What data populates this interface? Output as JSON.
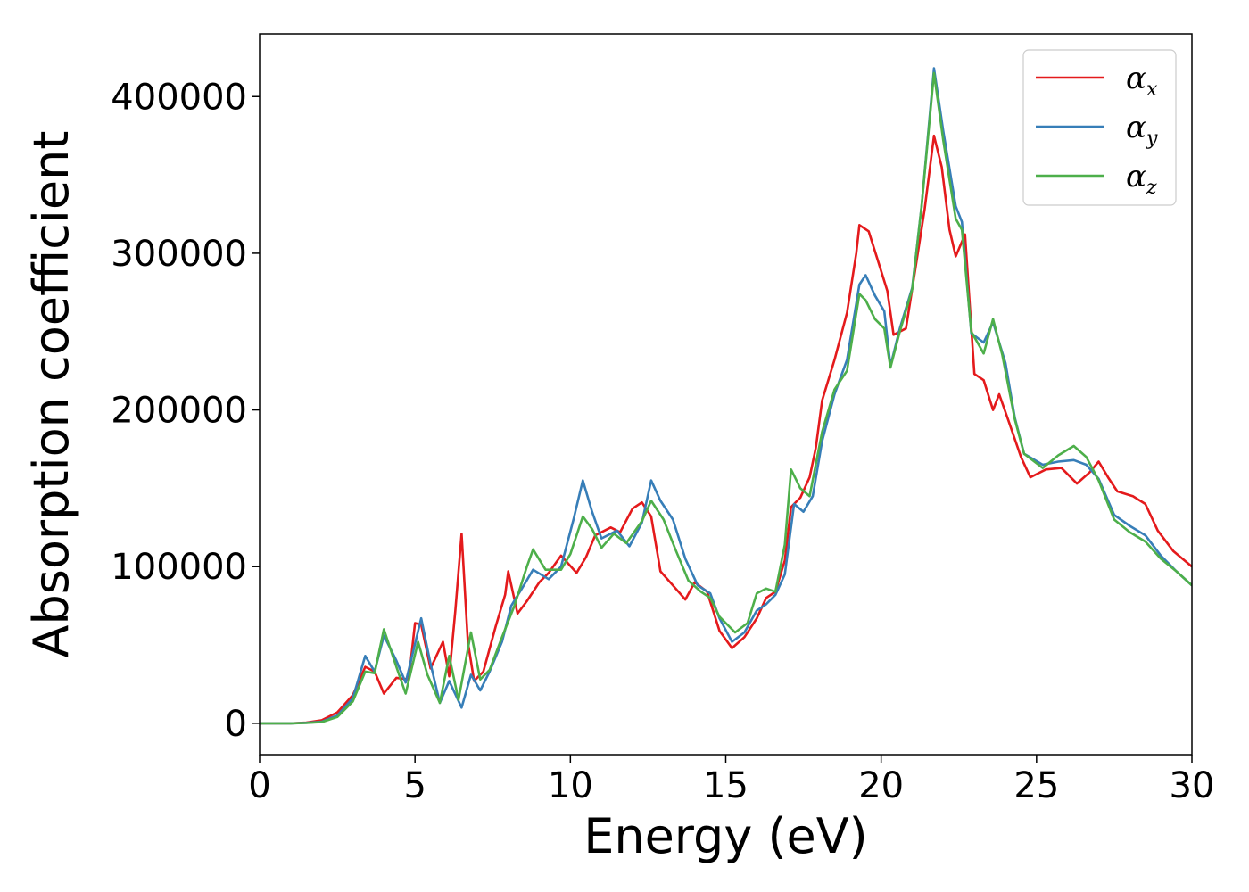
{
  "chart_data": {
    "type": "line",
    "title": "",
    "xlabel": "Energy (eV)",
    "ylabel": "Absorption coefficient",
    "xlim": [
      0,
      30
    ],
    "ylim": [
      -20000,
      440000
    ],
    "xticks": [
      0,
      5,
      10,
      15,
      20,
      25,
      30
    ],
    "yticks": [
      0,
      100000,
      200000,
      300000,
      400000
    ],
    "grid": false,
    "legend_position": "top-right",
    "series": [
      {
        "name": "α",
        "subscript": "x",
        "color": "#e41a1c",
        "points": [
          [
            0,
            0
          ],
          [
            1,
            0
          ],
          [
            1.5,
            500
          ],
          [
            2,
            2000
          ],
          [
            2.5,
            7000
          ],
          [
            3,
            18000
          ],
          [
            3.4,
            36000
          ],
          [
            3.7,
            33000
          ],
          [
            4,
            19000
          ],
          [
            4.4,
            29000
          ],
          [
            4.8,
            28000
          ],
          [
            5,
            64000
          ],
          [
            5.2,
            63000
          ],
          [
            5.5,
            35000
          ],
          [
            5.9,
            52000
          ],
          [
            6.1,
            30000
          ],
          [
            6.3,
            72000
          ],
          [
            6.5,
            121000
          ],
          [
            6.7,
            52000
          ],
          [
            6.9,
            27000
          ],
          [
            7.2,
            33000
          ],
          [
            7.6,
            62000
          ],
          [
            7.9,
            82000
          ],
          [
            8,
            97000
          ],
          [
            8.3,
            70000
          ],
          [
            8.6,
            78000
          ],
          [
            9,
            90000
          ],
          [
            9.3,
            96000
          ],
          [
            9.7,
            107000
          ],
          [
            10.2,
            96000
          ],
          [
            10.5,
            106000
          ],
          [
            10.8,
            120000
          ],
          [
            11.3,
            125000
          ],
          [
            11.6,
            122000
          ],
          [
            12,
            137000
          ],
          [
            12.3,
            141000
          ],
          [
            12.6,
            132000
          ],
          [
            12.9,
            97000
          ],
          [
            13.3,
            88000
          ],
          [
            13.7,
            79000
          ],
          [
            14,
            90000
          ],
          [
            14.4,
            84000
          ],
          [
            14.8,
            59000
          ],
          [
            15.2,
            48000
          ],
          [
            15.6,
            55000
          ],
          [
            16,
            67000
          ],
          [
            16.3,
            80000
          ],
          [
            16.6,
            84000
          ],
          [
            16.9,
            104000
          ],
          [
            17.1,
            138000
          ],
          [
            17.4,
            144000
          ],
          [
            17.7,
            157000
          ],
          [
            17.9,
            176000
          ],
          [
            18.1,
            206000
          ],
          [
            18.5,
            232000
          ],
          [
            18.9,
            262000
          ],
          [
            19.2,
            300000
          ],
          [
            19.3,
            318000
          ],
          [
            19.6,
            314000
          ],
          [
            19.9,
            295000
          ],
          [
            20.2,
            276000
          ],
          [
            20.4,
            248000
          ],
          [
            20.8,
            252000
          ],
          [
            21.1,
            290000
          ],
          [
            21.4,
            328000
          ],
          [
            21.7,
            375000
          ],
          [
            21.95,
            355000
          ],
          [
            22.2,
            315000
          ],
          [
            22.4,
            298000
          ],
          [
            22.7,
            312000
          ],
          [
            23,
            223000
          ],
          [
            23.3,
            219000
          ],
          [
            23.6,
            200000
          ],
          [
            23.8,
            210000
          ],
          [
            24.1,
            193000
          ],
          [
            24.5,
            170000
          ],
          [
            24.8,
            157000
          ],
          [
            25.3,
            162000
          ],
          [
            25.8,
            163000
          ],
          [
            26.3,
            153000
          ],
          [
            26.7,
            160000
          ],
          [
            27,
            167000
          ],
          [
            27.3,
            157000
          ],
          [
            27.6,
            148000
          ],
          [
            28.1,
            145000
          ],
          [
            28.5,
            140000
          ],
          [
            28.9,
            123000
          ],
          [
            29.4,
            110000
          ],
          [
            30,
            100000
          ]
        ]
      },
      {
        "name": "α",
        "subscript": "y",
        "color": "#377eb8",
        "points": [
          [
            0,
            0
          ],
          [
            1,
            0
          ],
          [
            1.5,
            300
          ],
          [
            2,
            1000
          ],
          [
            2.5,
            5000
          ],
          [
            3,
            16000
          ],
          [
            3.4,
            43000
          ],
          [
            3.7,
            33000
          ],
          [
            4,
            56000
          ],
          [
            4.4,
            40000
          ],
          [
            4.7,
            26000
          ],
          [
            5.2,
            67000
          ],
          [
            5.5,
            38000
          ],
          [
            5.8,
            13000
          ],
          [
            6.1,
            27000
          ],
          [
            6.5,
            10000
          ],
          [
            6.8,
            31000
          ],
          [
            7.1,
            21000
          ],
          [
            7.4,
            33000
          ],
          [
            7.8,
            52000
          ],
          [
            8.1,
            75000
          ],
          [
            8.5,
            88000
          ],
          [
            8.8,
            98000
          ],
          [
            9.3,
            92000
          ],
          [
            9.7,
            100000
          ],
          [
            10.1,
            130000
          ],
          [
            10.4,
            155000
          ],
          [
            10.7,
            135000
          ],
          [
            11,
            118000
          ],
          [
            11.5,
            123000
          ],
          [
            11.9,
            113000
          ],
          [
            12.3,
            128000
          ],
          [
            12.6,
            155000
          ],
          [
            12.9,
            142000
          ],
          [
            13.3,
            130000
          ],
          [
            13.7,
            105000
          ],
          [
            14.1,
            88000
          ],
          [
            14.5,
            83000
          ],
          [
            14.8,
            67000
          ],
          [
            15.2,
            52000
          ],
          [
            15.6,
            58000
          ],
          [
            16,
            72000
          ],
          [
            16.3,
            76000
          ],
          [
            16.6,
            82000
          ],
          [
            16.9,
            95000
          ],
          [
            17.2,
            140000
          ],
          [
            17.5,
            135000
          ],
          [
            17.8,
            145000
          ],
          [
            18.1,
            180000
          ],
          [
            18.5,
            210000
          ],
          [
            18.9,
            232000
          ],
          [
            19.3,
            280000
          ],
          [
            19.5,
            286000
          ],
          [
            19.8,
            273000
          ],
          [
            20.1,
            263000
          ],
          [
            20.3,
            228000
          ],
          [
            20.6,
            252000
          ],
          [
            21,
            278000
          ],
          [
            21.3,
            330000
          ],
          [
            21.7,
            418000
          ],
          [
            22,
            378000
          ],
          [
            22.4,
            330000
          ],
          [
            22.6,
            320000
          ],
          [
            22.9,
            249000
          ],
          [
            23.3,
            243000
          ],
          [
            23.6,
            256000
          ],
          [
            24,
            230000
          ],
          [
            24.3,
            195000
          ],
          [
            24.6,
            172000
          ],
          [
            25.2,
            165000
          ],
          [
            25.7,
            167000
          ],
          [
            26.2,
            168000
          ],
          [
            26.6,
            165000
          ],
          [
            27,
            156000
          ],
          [
            27.5,
            133000
          ],
          [
            28,
            126000
          ],
          [
            28.5,
            120000
          ],
          [
            29,
            107000
          ],
          [
            29.5,
            97000
          ],
          [
            30,
            88000
          ]
        ]
      },
      {
        "name": "α",
        "subscript": "z",
        "color": "#4daf4a",
        "points": [
          [
            0,
            0
          ],
          [
            1,
            0
          ],
          [
            1.5,
            200
          ],
          [
            2,
            800
          ],
          [
            2.5,
            4000
          ],
          [
            3,
            14000
          ],
          [
            3.4,
            33000
          ],
          [
            3.7,
            32000
          ],
          [
            4,
            60000
          ],
          [
            4.4,
            36000
          ],
          [
            4.7,
            19000
          ],
          [
            5.1,
            52000
          ],
          [
            5.4,
            31000
          ],
          [
            5.8,
            13000
          ],
          [
            6.1,
            43000
          ],
          [
            6.4,
            15000
          ],
          [
            6.8,
            58000
          ],
          [
            7.1,
            28000
          ],
          [
            7.4,
            34000
          ],
          [
            7.8,
            55000
          ],
          [
            8.2,
            75000
          ],
          [
            8.6,
            100000
          ],
          [
            8.8,
            111000
          ],
          [
            9.2,
            98000
          ],
          [
            9.7,
            98000
          ],
          [
            10,
            108000
          ],
          [
            10.4,
            132000
          ],
          [
            10.7,
            124000
          ],
          [
            11,
            112000
          ],
          [
            11.4,
            121000
          ],
          [
            11.8,
            115000
          ],
          [
            12.3,
            129000
          ],
          [
            12.6,
            142000
          ],
          [
            13,
            130000
          ],
          [
            13.4,
            110000
          ],
          [
            13.8,
            91000
          ],
          [
            14.2,
            84000
          ],
          [
            14.5,
            80000
          ],
          [
            14.8,
            68000
          ],
          [
            15.3,
            58000
          ],
          [
            15.7,
            64000
          ],
          [
            16,
            83000
          ],
          [
            16.3,
            86000
          ],
          [
            16.6,
            84000
          ],
          [
            16.9,
            114000
          ],
          [
            17.1,
            162000
          ],
          [
            17.4,
            150000
          ],
          [
            17.7,
            145000
          ],
          [
            18.1,
            186000
          ],
          [
            18.5,
            213000
          ],
          [
            18.9,
            225000
          ],
          [
            19.3,
            274000
          ],
          [
            19.5,
            270000
          ],
          [
            19.8,
            258000
          ],
          [
            20.1,
            252000
          ],
          [
            20.3,
            227000
          ],
          [
            20.6,
            250000
          ],
          [
            21,
            277000
          ],
          [
            21.3,
            330000
          ],
          [
            21.7,
            415000
          ],
          [
            22,
            372000
          ],
          [
            22.4,
            322000
          ],
          [
            22.6,
            315000
          ],
          [
            22.9,
            250000
          ],
          [
            23.3,
            236000
          ],
          [
            23.6,
            258000
          ],
          [
            23.9,
            235000
          ],
          [
            24.3,
            194000
          ],
          [
            24.6,
            172000
          ],
          [
            25.2,
            163000
          ],
          [
            25.7,
            171000
          ],
          [
            26.2,
            177000
          ],
          [
            26.6,
            170000
          ],
          [
            27,
            155000
          ],
          [
            27.5,
            130000
          ],
          [
            28,
            122000
          ],
          [
            28.5,
            116000
          ],
          [
            29,
            105000
          ],
          [
            29.5,
            97000
          ],
          [
            30,
            88000
          ]
        ]
      }
    ]
  }
}
